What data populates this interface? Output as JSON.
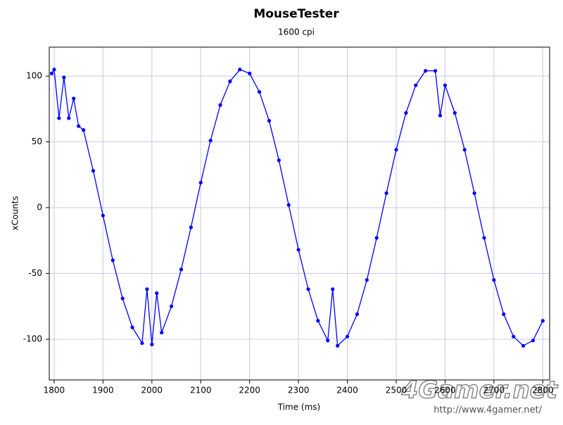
{
  "chart_data": {
    "type": "line",
    "title": "MouseTester",
    "subtitle": "1600 cpi",
    "x_label": "Time (ms)",
    "y_label": "xCounts",
    "xlim": [
      1790,
      2814
    ],
    "ylim": [
      -131,
      122
    ],
    "xticks": [
      1800,
      1900,
      2000,
      2100,
      2200,
      2300,
      2400,
      2500,
      2600,
      2700,
      2800
    ],
    "yticks": [
      -100,
      -50,
      0,
      50,
      100
    ],
    "grid": true,
    "series": [
      {
        "name": "xCounts",
        "color": "#0000ff",
        "x": [
          1795,
          1800,
          1810,
          1820,
          1830,
          1840,
          1850,
          1860,
          1880,
          1900,
          1920,
          1940,
          1960,
          1980,
          1990,
          2000,
          2010,
          2020,
          2040,
          2060,
          2080,
          2100,
          2120,
          2140,
          2160,
          2180,
          2200,
          2220,
          2240,
          2260,
          2280,
          2300,
          2320,
          2340,
          2360,
          2370,
          2380,
          2400,
          2420,
          2440,
          2460,
          2480,
          2500,
          2520,
          2540,
          2560,
          2580,
          2590,
          2600,
          2620,
          2640,
          2660,
          2680,
          2700,
          2720,
          2740,
          2760,
          2780,
          2800
        ],
        "values": [
          102,
          105,
          68,
          99,
          68,
          83,
          62,
          59,
          28,
          -6,
          -40,
          -69,
          -91,
          -103,
          -62,
          -104,
          -65,
          -95,
          -75,
          -47,
          -15,
          19,
          51,
          78,
          96,
          105,
          102,
          88,
          66,
          36,
          2,
          -32,
          -62,
          -86,
          -101,
          -62,
          -105,
          -98,
          -81,
          -55,
          -23,
          11,
          44,
          72,
          93,
          104,
          104,
          70,
          93,
          72,
          44,
          11,
          -23,
          -55,
          -81,
          -98,
          -105,
          -101,
          -86
        ]
      }
    ]
  },
  "watermark": {
    "logo": "4Gamer.net",
    "url": "http://www.4gamer.net/"
  }
}
